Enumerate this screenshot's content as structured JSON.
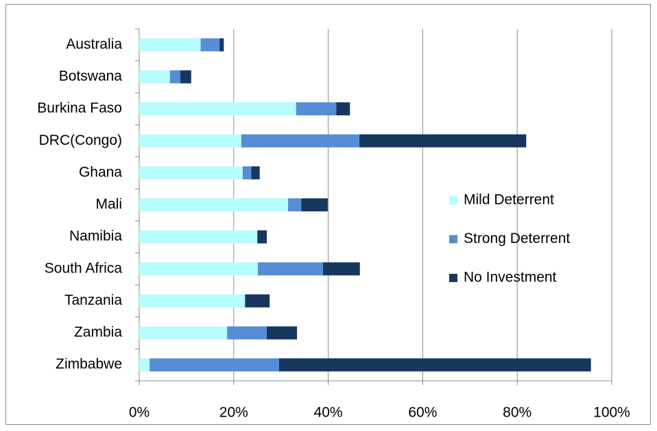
{
  "chart_data": {
    "type": "stacked_barh",
    "categories": [
      "Australia",
      "Botswana",
      "Burkina Faso",
      "DRC(Congo)",
      "Ghana",
      "Mali",
      "Namibia",
      "South Africa",
      "Tanzania",
      "Zambia",
      "Zimbabwe"
    ],
    "series": [
      {
        "name": "Mild Deterrent",
        "color": "#b7fcff",
        "values": [
          13,
          6.5,
          33.2,
          21.6,
          21.9,
          31.5,
          25,
          25.1,
          22.4,
          18.6,
          2.2
        ]
      },
      {
        "name": "Strong Deterrent",
        "color": "#558ed5",
        "values": [
          4,
          2.2,
          8.5,
          25,
          1.8,
          2.8,
          0,
          13.8,
          0,
          8.4,
          27.4
        ]
      },
      {
        "name": "No Investment",
        "color": "#17375e",
        "values": [
          0.9,
          2.3,
          2.9,
          35.3,
          1.8,
          5.6,
          2,
          7.8,
          5.2,
          6.4,
          66
        ]
      }
    ],
    "xlim": [
      0,
      100
    ],
    "xticks": [
      {
        "value": 0,
        "label": "0%"
      },
      {
        "value": 20,
        "label": "20%"
      },
      {
        "value": 40,
        "label": "40%"
      },
      {
        "value": 60,
        "label": "60%"
      },
      {
        "value": 80,
        "label": "80%"
      },
      {
        "value": 100,
        "label": "100%"
      }
    ],
    "grid": true,
    "legend": "right"
  }
}
